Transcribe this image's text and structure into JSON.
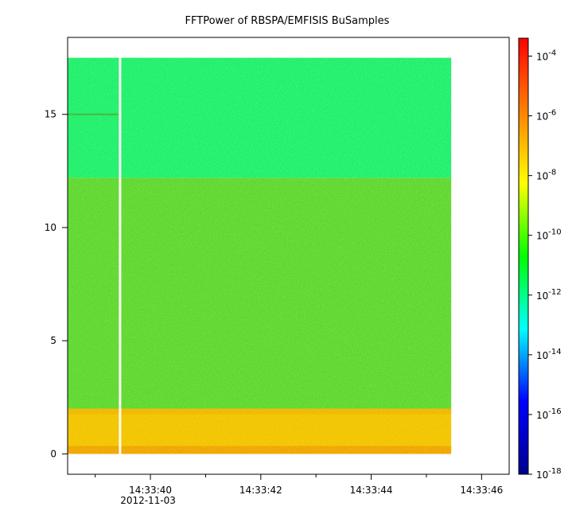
{
  "chart_data": {
    "type": "heatmap",
    "title": "FFTPower of RBSPA/EMFISIS  BuSamples",
    "xlabel": "",
    "ylabel": "",
    "x_axis": {
      "ticks": [
        {
          "label": "14:33:40",
          "sub": "2012-11-03",
          "t": 40
        },
        {
          "label": "14:33:42",
          "sub": "",
          "t": 42
        },
        {
          "label": "14:33:44",
          "sub": "",
          "t": 44
        },
        {
          "label": "14:33:46",
          "sub": "",
          "t": 46
        }
      ],
      "minor_ticks": [
        39,
        41,
        43,
        45
      ],
      "range_seconds": [
        38.5,
        46.5
      ]
    },
    "y_axis": {
      "ticks": [
        0,
        5,
        10,
        15
      ],
      "range": [
        -0.9,
        18.4
      ]
    },
    "colorbar": {
      "scale": "log",
      "range_exp": [
        -18,
        -3.4
      ],
      "ticks": [
        {
          "base": "10",
          "exp": "-4",
          "e": -4
        },
        {
          "base": "10",
          "exp": "-6",
          "e": -6
        },
        {
          "base": "10",
          "exp": "-8",
          "e": -8
        },
        {
          "base": "10",
          "exp": "-10",
          "e": -10
        },
        {
          "base": "10",
          "exp": "-12",
          "e": -12
        },
        {
          "base": "10",
          "exp": "-14",
          "e": -14
        },
        {
          "base": "10",
          "exp": "-16",
          "e": -16
        },
        {
          "base": "10",
          "exp": "-18",
          "e": -18
        }
      ],
      "colors": [
        "#00008f",
        "#0000ff",
        "#00ffff",
        "#00ff00",
        "#ffff00",
        "#ff8000",
        "#ff0000"
      ]
    },
    "data_extent": {
      "t_start": 38.5,
      "t_end": 45.45,
      "f_min": 0,
      "f_max": 17.5
    },
    "gap": {
      "t": 39.45
    },
    "bands": [
      {
        "f_low": 0,
        "f_high": 2.0,
        "level_exp": -8.5,
        "color": "#f2c400"
      },
      {
        "f_low": 2.0,
        "f_high": 12.2,
        "level_exp": -10.5,
        "color": "#5cd832"
      },
      {
        "f_low": 12.2,
        "f_high": 17.5,
        "level_exp": -11.8,
        "color": "#1cf070"
      }
    ],
    "lines": [
      {
        "f": 15.0,
        "t_start": 38.5,
        "t_end": 39.45,
        "color": "#3db53d"
      }
    ]
  }
}
